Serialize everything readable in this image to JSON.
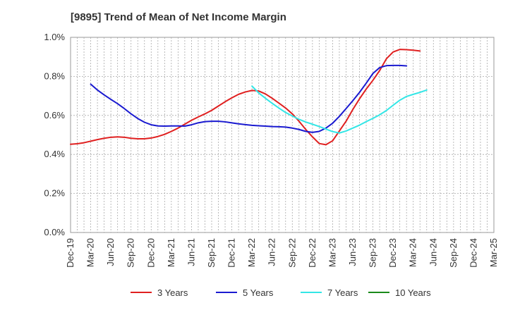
{
  "chart_data": {
    "type": "line",
    "title": "[9895]  Trend of Mean of Net Income Margin",
    "xlabel": "",
    "ylabel": "",
    "x_tick_labels": [
      "Dec-19",
      "Mar-20",
      "Jun-20",
      "Sep-20",
      "Dec-20",
      "Mar-21",
      "Jun-21",
      "Sep-21",
      "Dec-21",
      "Mar-22",
      "Jun-22",
      "Sep-22",
      "Dec-22",
      "Mar-23",
      "Jun-23",
      "Sep-23",
      "Dec-23",
      "Mar-24",
      "Jun-24",
      "Sep-24",
      "Dec-24",
      "Mar-25"
    ],
    "y_tick_labels": [
      "0.0%",
      "0.2%",
      "0.4%",
      "0.6%",
      "0.8%",
      "1.0%"
    ],
    "ylim": [
      0,
      1.0
    ],
    "grid": true,
    "legend_position": "bottom",
    "colors": {
      "3y": "#e02020",
      "5y": "#1a1ad0",
      "7y": "#33e6e6",
      "10y": "#1a8a1a"
    },
    "series": [
      {
        "name": "3 Years",
        "color": "#e02020",
        "start": "Dec-19",
        "values": [
          0.452,
          0.455,
          0.46,
          0.468,
          0.476,
          0.483,
          0.488,
          0.49,
          0.488,
          0.483,
          0.48,
          0.48,
          0.484,
          0.492,
          0.503,
          0.518,
          0.535,
          0.555,
          0.575,
          0.592,
          0.608,
          0.626,
          0.648,
          0.67,
          0.69,
          0.708,
          0.72,
          0.728,
          0.725,
          0.71,
          0.688,
          0.663,
          0.638,
          0.608,
          0.57,
          0.528,
          0.49,
          0.456,
          0.45,
          0.47,
          0.52,
          0.57,
          0.63,
          0.685,
          0.735,
          0.78,
          0.83,
          0.89,
          0.925,
          0.938,
          0.937,
          0.934,
          0.93
        ]
      },
      {
        "name": "5 Years",
        "color": "#1a1ad0",
        "start": "Mar-20",
        "values": [
          0.76,
          0.73,
          0.705,
          0.682,
          0.66,
          0.635,
          0.608,
          0.584,
          0.565,
          0.552,
          0.546,
          0.545,
          0.546,
          0.546,
          0.545,
          0.552,
          0.562,
          0.568,
          0.57,
          0.57,
          0.567,
          0.562,
          0.557,
          0.553,
          0.549,
          0.547,
          0.545,
          0.543,
          0.542,
          0.54,
          0.535,
          0.528,
          0.518,
          0.513,
          0.518,
          0.535,
          0.56,
          0.595,
          0.635,
          0.675,
          0.718,
          0.765,
          0.815,
          0.845,
          0.855,
          0.856,
          0.856,
          0.854
        ]
      },
      {
        "name": "7 Years",
        "color": "#33e6e6",
        "start": "Mar-22",
        "values": [
          0.75,
          0.715,
          0.688,
          0.662,
          0.638,
          0.615,
          0.597,
          0.58,
          0.566,
          0.555,
          0.543,
          0.53,
          0.517,
          0.51,
          0.52,
          0.535,
          0.55,
          0.568,
          0.585,
          0.603,
          0.625,
          0.652,
          0.678,
          0.697,
          0.708,
          0.718,
          0.73
        ]
      },
      {
        "name": "10 Years",
        "color": "#1a8a1a",
        "start": "Dec-19",
        "values": []
      }
    ]
  }
}
